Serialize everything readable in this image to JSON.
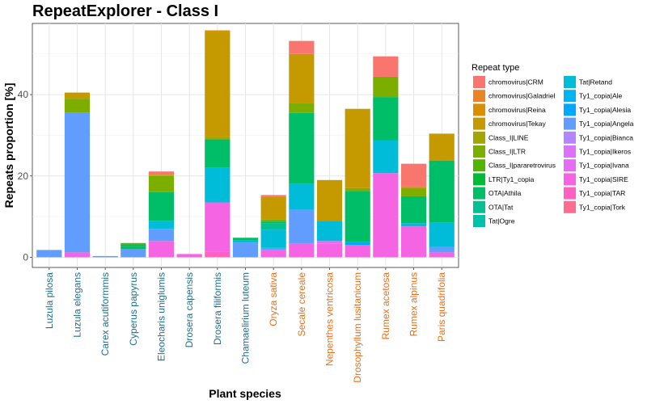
{
  "chart_data": {
    "type": "bar",
    "stacked": true,
    "title": "RepeatExplorer - Class I",
    "xlabel": "Plant species",
    "ylabel": "Repeats proportion [%]",
    "ylim": [
      -2.5,
      57.5
    ],
    "yticks": [
      0,
      20,
      40
    ],
    "grid": true,
    "legend_title": "Repeat type",
    "legend_position": "right",
    "categories": [
      "Luzula pilosa",
      "Luzula elegans",
      "Carex acutiformmis",
      "Cyperus papyrus",
      "Eleocharis uniglumis",
      "Drosera capensis",
      "Drosera filiformis",
      "Chamaelirium luteum",
      "Oryza sativa",
      "Secale cereale",
      "Nepenthes ventricosa",
      "Drosophyllum lusitanicum",
      "Rumex acetosa",
      "Rumex alpinus",
      "Paris quadrifolia"
    ],
    "category_colors": [
      "#1f6f8b",
      "#1f6f8b",
      "#1f6f8b",
      "#1f6f8b",
      "#1f6f8b",
      "#1f6f8b",
      "#1f6f8b",
      "#1f6f8b",
      "#e8711b",
      "#e8711b",
      "#e8711b",
      "#e8711b",
      "#e8711b",
      "#e8711b",
      "#e8711b"
    ],
    "series": [
      {
        "name": "Ty1_copia|Tork",
        "color": "#FF6C91",
        "values": [
          0,
          0,
          0,
          0,
          0,
          0,
          0,
          0,
          0,
          0,
          0,
          0,
          0,
          0,
          0
        ]
      },
      {
        "name": "Ty1_copia|TAR",
        "color": "#FF61C3",
        "values": [
          0,
          0,
          0,
          0,
          0,
          0,
          1.3,
          0,
          0,
          0,
          0,
          0,
          0,
          0,
          0
        ]
      },
      {
        "name": "Ty1_copia|SIRE",
        "color": "#F564E3",
        "values": [
          0,
          1.2,
          0,
          0,
          4.0,
          0.8,
          12.2,
          0,
          1.8,
          3.3,
          3.3,
          3.0,
          20.7,
          7.6,
          1.2
        ]
      },
      {
        "name": "Ty1_copia|Ivana",
        "color": "#E76BF3",
        "values": [
          0,
          0,
          0,
          0,
          0,
          0,
          0,
          0,
          0,
          0,
          0.7,
          0,
          0,
          0,
          0
        ]
      },
      {
        "name": "Ty1_copia|Ikeros",
        "color": "#DC71FA",
        "values": [
          0,
          0,
          0,
          0,
          0,
          0,
          0,
          0,
          0,
          0,
          0,
          0,
          0,
          0,
          0
        ]
      },
      {
        "name": "Ty1_copia|Bianca",
        "color": "#B385FF",
        "values": [
          0,
          0,
          0,
          0,
          0,
          0,
          0,
          0,
          0,
          0,
          0,
          0,
          0,
          0,
          0
        ]
      },
      {
        "name": "Ty1_copia|Angela",
        "color": "#619CFF",
        "values": [
          1.8,
          34.3,
          0.3,
          2.0,
          3.0,
          0,
          0,
          3.6,
          0.5,
          8.5,
          0,
          0,
          0,
          0,
          1.3
        ]
      },
      {
        "name": "Ty1_copia|Alesia",
        "color": "#00A9FF",
        "values": [
          0,
          0,
          0,
          0,
          0,
          0,
          0,
          0,
          0,
          0,
          0,
          0.7,
          0,
          0,
          0
        ]
      },
      {
        "name": "Ty1_copia|Ale",
        "color": "#00B4F0",
        "values": [
          0,
          0,
          0,
          0,
          0,
          0,
          0,
          0,
          0,
          0,
          0,
          0,
          0,
          0,
          0
        ]
      },
      {
        "name": "Tat|Retand",
        "color": "#00BCD8",
        "values": [
          0,
          0,
          0,
          0,
          2.0,
          0,
          8.5,
          0.5,
          4.5,
          6.2,
          5.0,
          0,
          8.0,
          0.8,
          6.0
        ]
      },
      {
        "name": "Tat|Ogre",
        "color": "#00C1AA",
        "values": [
          0,
          0,
          0,
          0,
          0,
          0,
          0,
          0,
          0,
          0,
          0,
          0,
          0,
          0,
          0
        ]
      },
      {
        "name": "OTA|Tat",
        "color": "#00C094",
        "values": [
          0,
          0,
          0,
          0,
          0,
          0,
          0,
          0,
          1.5,
          0,
          0,
          0,
          0,
          0,
          0
        ]
      },
      {
        "name": "OTA|Athila",
        "color": "#00BE67",
        "values": [
          0,
          0,
          0,
          0.8,
          7.0,
          0,
          7.0,
          0.7,
          0.5,
          17.5,
          0,
          12.6,
          10.7,
          6.6,
          15.3
        ]
      },
      {
        "name": "LTR|Ty1_copia",
        "color": "#00BA38",
        "values": [
          0,
          0,
          0,
          0.4,
          0,
          0,
          0,
          0,
          0,
          0,
          0,
          0,
          0,
          0,
          0
        ]
      },
      {
        "name": "Class_I|pararetrovirus",
        "color": "#53B400",
        "values": [
          0,
          0,
          0,
          0.3,
          0,
          0,
          0,
          0,
          0,
          0,
          0,
          0,
          0,
          0,
          0
        ]
      },
      {
        "name": "Class_I|LTR",
        "color": "#7CAE00",
        "values": [
          0,
          3.5,
          0,
          0,
          4.0,
          0,
          0,
          0,
          0.5,
          2.5,
          0,
          0.7,
          5.0,
          2.0,
          0
        ]
      },
      {
        "name": "Class_I|LINE",
        "color": "#A3A500",
        "values": [
          0,
          0,
          0,
          0,
          0,
          0,
          0.5,
          0,
          0,
          0,
          0,
          0,
          0,
          0,
          0
        ]
      },
      {
        "name": "chromovirus|Tekay",
        "color": "#C49A00",
        "values": [
          0,
          1.5,
          0,
          0,
          0.3,
          0,
          26.0,
          0,
          5.5,
          12.0,
          10.0,
          19.5,
          0,
          0.4,
          6.6
        ]
      },
      {
        "name": "chromovirus|Reina",
        "color": "#D89000",
        "values": [
          0,
          0,
          0,
          0,
          0,
          0,
          0.3,
          0,
          0,
          0,
          0,
          0,
          0,
          0,
          0
        ]
      },
      {
        "name": "chromovirus|Galadriel",
        "color": "#E88526",
        "values": [
          0,
          0,
          0,
          0,
          0,
          0,
          0,
          0,
          0,
          0,
          0,
          0,
          0,
          0,
          0
        ]
      },
      {
        "name": "chromovirus|CRM",
        "color": "#F8766D",
        "values": [
          0,
          0,
          0,
          0,
          0.8,
          0,
          0,
          0,
          0.5,
          3.2,
          0,
          0,
          5.0,
          5.6,
          0
        ]
      }
    ],
    "legend_columns": [
      [
        "chromovirus|CRM",
        "chromovirus|Galadriel",
        "chromovirus|Reina",
        "chromovirus|Tekay",
        "Class_I|LINE",
        "Class_I|LTR",
        "Class_I|pararetrovirus",
        "LTR|Ty1_copia",
        "OTA|Athila",
        "OTA|Tat",
        "Tat|Ogre"
      ],
      [
        "Tat|Retand",
        "Ty1_copia|Ale",
        "Ty1_copia|Alesia",
        "Ty1_copia|Angela",
        "Ty1_copia|Bianca",
        "Ty1_copia|Ikeros",
        "Ty1_copia|Ivana",
        "Ty1_copia|SIRE",
        "Ty1_copia|TAR",
        "Ty1_copia|Tork"
      ]
    ]
  }
}
